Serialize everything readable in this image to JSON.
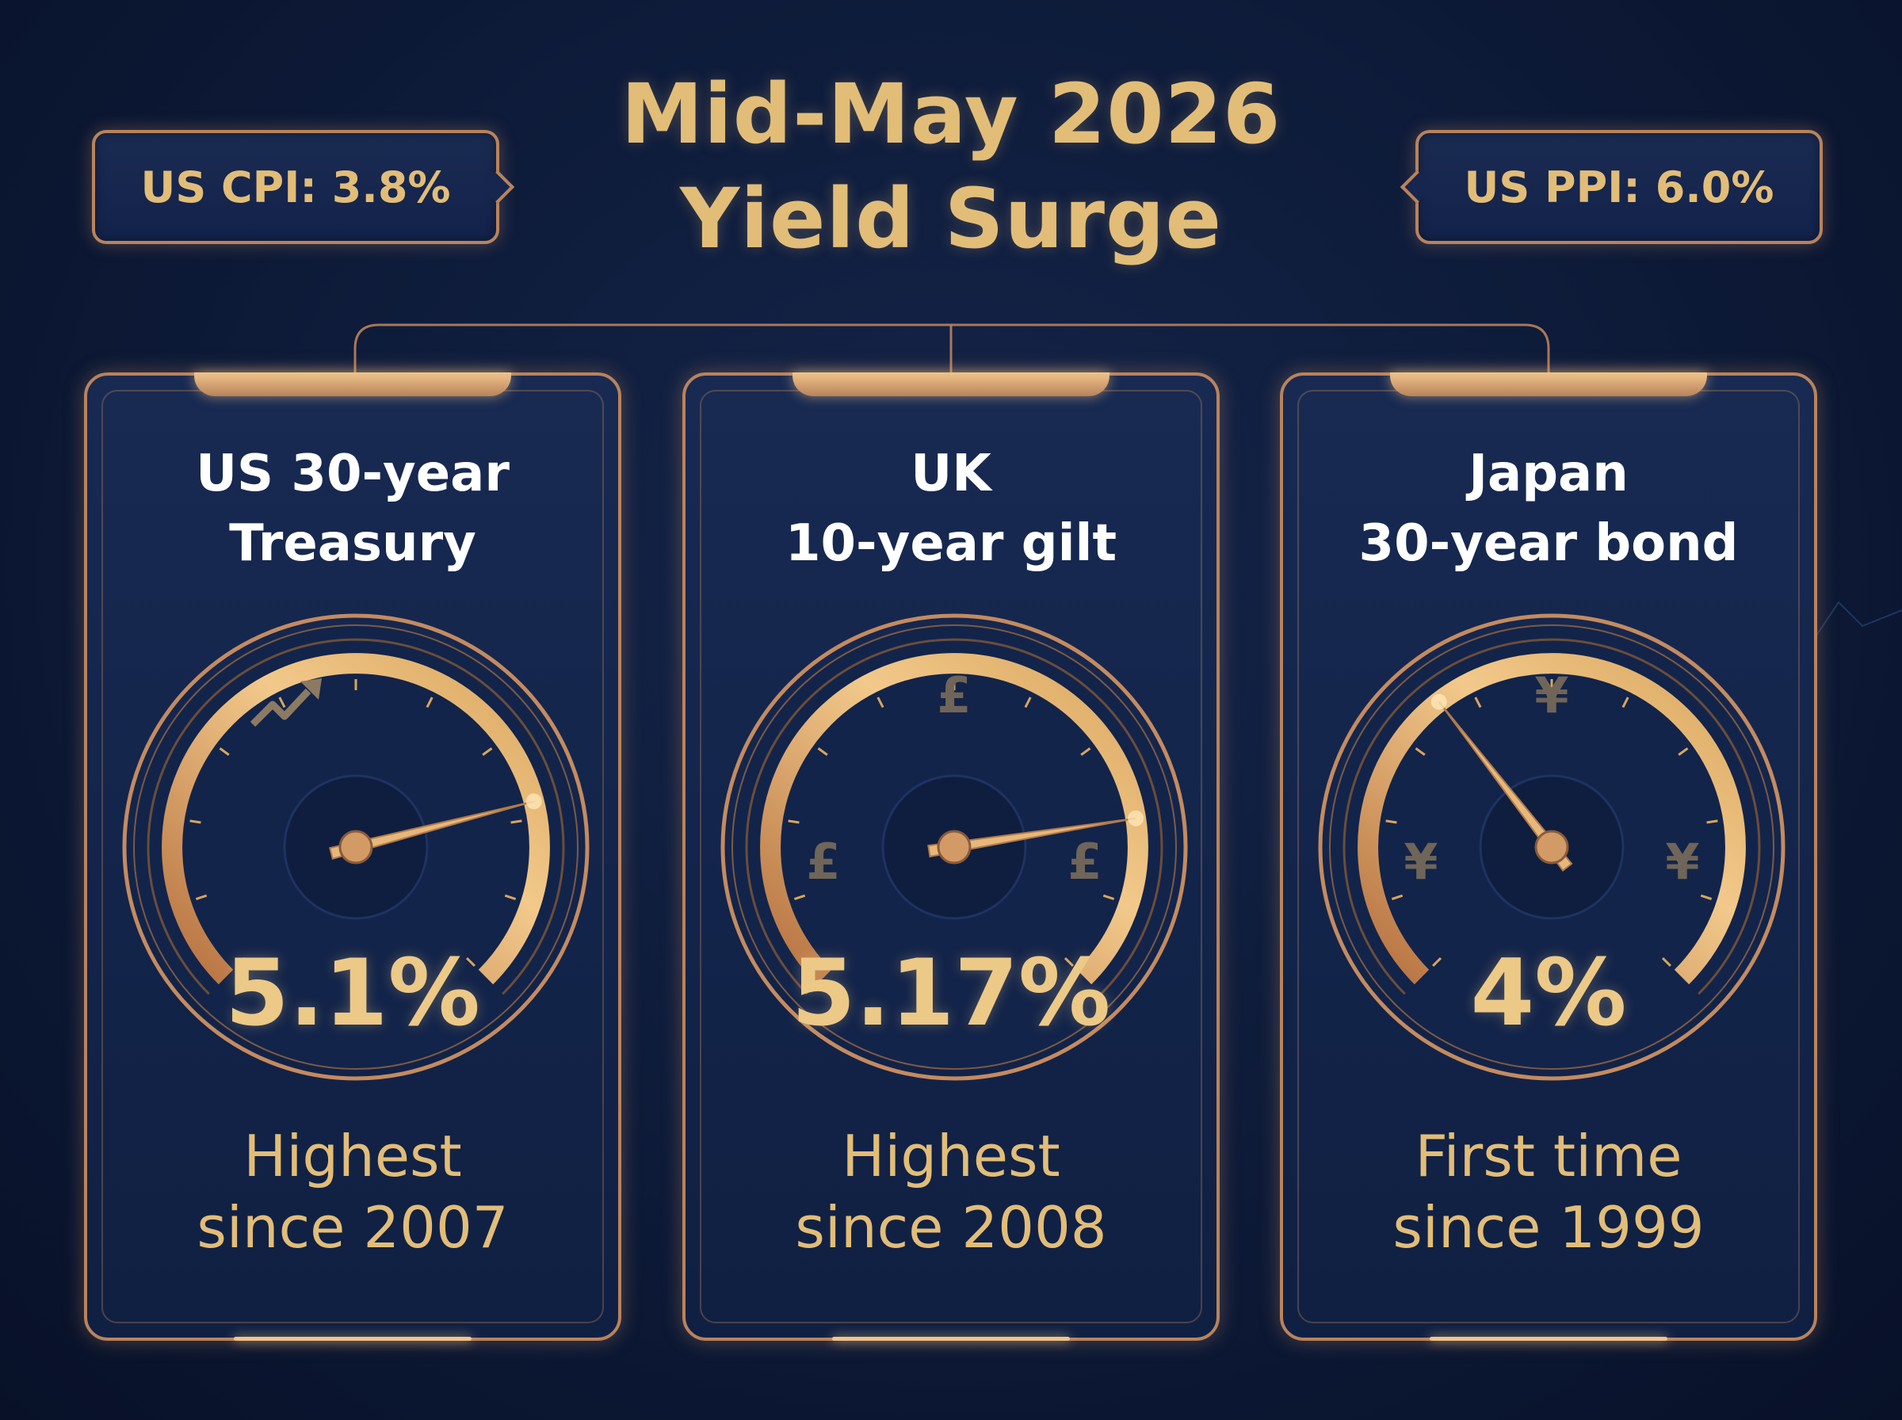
{
  "header": {
    "title_line1": "Mid-May 2026",
    "title_line2": "Yield Surge"
  },
  "callouts": {
    "cpi": "US CPI: 3.8%",
    "ppi": "US PPI: 6.0%"
  },
  "cards": [
    {
      "title_line1": "US 30-year",
      "title_line2": "Treasury",
      "value": "5.1%",
      "note_line1": "Highest",
      "note_line2": "since 2007",
      "gauge_level": 0.78,
      "icon": "trend-up-arrow-icon"
    },
    {
      "title_line1": "UK",
      "title_line2": "10-year gilt",
      "value": "5.17%",
      "note_line1": "Highest",
      "note_line2": "since 2008",
      "gauge_level": 0.8,
      "icon": "pound-icon",
      "glyph": "£"
    },
    {
      "title_line1": "Japan",
      "title_line2": "30-year bond",
      "value": "4%",
      "note_line1": "First time",
      "note_line2": "since 1999",
      "gauge_level": 0.36,
      "icon": "yen-icon",
      "glyph": "¥"
    }
  ],
  "colors": {
    "background": "#0d1a38",
    "gold": "#e2bd78",
    "copper": "#b9835c",
    "title_white": "#ffffff"
  }
}
